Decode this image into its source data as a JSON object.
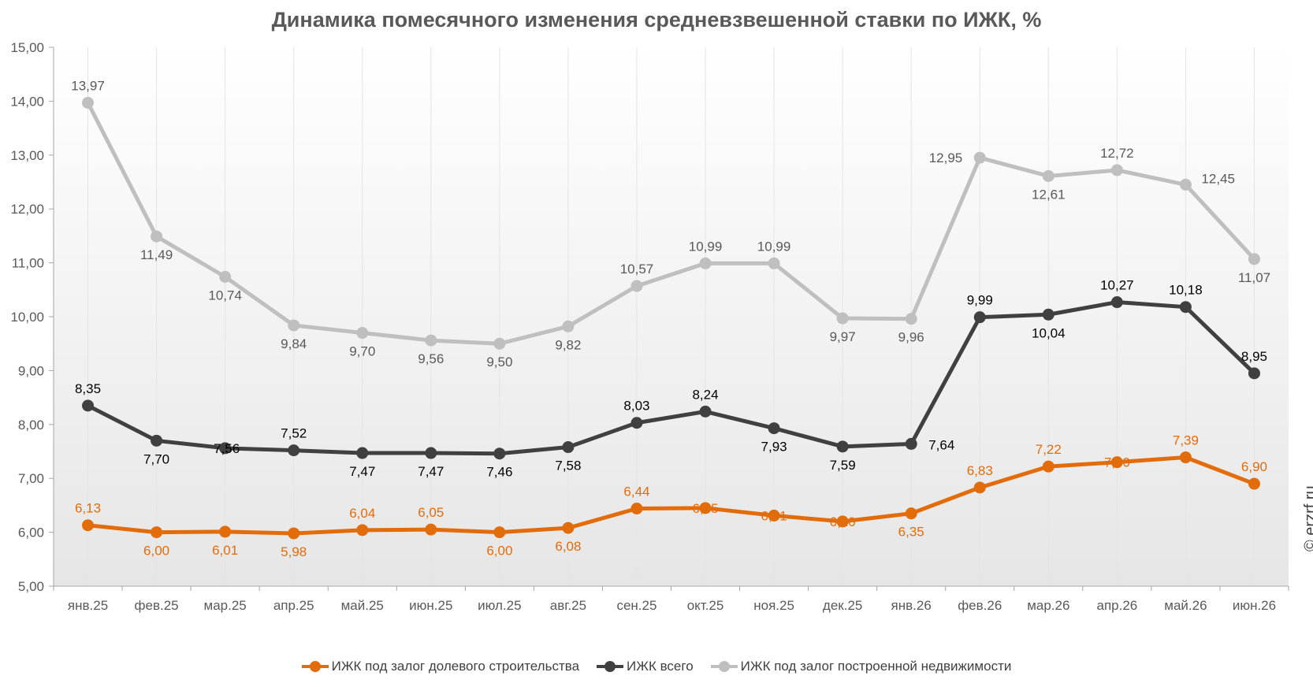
{
  "title": "Динамика помесячного изменения средневзвешенной ставки по ИЖК, %",
  "watermark": "© erzrf.ru",
  "chart_data": {
    "type": "line",
    "title": "Динамика помесячного изменения средневзвешенной ставки по ИЖК, %",
    "categories": [
      "янв.25",
      "фев.25",
      "мар.25",
      "апр.25",
      "май.25",
      "июн.25",
      "июл.25",
      "авг.25",
      "сен.25",
      "окт.25",
      "ноя.25",
      "дек.25",
      "янв.26",
      "фев.26",
      "мар.26",
      "апр.26",
      "май.26",
      "июн.26"
    ],
    "ylim": [
      5,
      15
    ],
    "yticks": [
      "5,00",
      "6,00",
      "7,00",
      "8,00",
      "9,00",
      "10,00",
      "11,00",
      "12,00",
      "13,00",
      "14,00",
      "15,00"
    ],
    "grid": true,
    "legend_position": "bottom",
    "series": [
      {
        "name": "ИЖК под залог долевого строительства",
        "color": "#E36C0A",
        "values": [
          6.13,
          6.0,
          6.01,
          5.98,
          6.04,
          6.05,
          6.0,
          6.08,
          6.44,
          6.45,
          6.31,
          6.2,
          6.35,
          6.83,
          7.22,
          7.3,
          7.39,
          6.9
        ],
        "labels": [
          "6,13",
          "6,00",
          "6,01",
          "5,98",
          "6,04",
          "6,05",
          "6,00",
          "6,08",
          "6,44",
          "6,45",
          "6,31",
          "6,20",
          "6,35",
          "6,83",
          "7,22",
          "7,30",
          "7,39",
          "6,90"
        ]
      },
      {
        "name": "ИЖК всего",
        "color": "#404040",
        "values": [
          8.35,
          7.7,
          7.56,
          7.52,
          7.47,
          7.47,
          7.46,
          7.58,
          8.03,
          8.24,
          7.93,
          7.59,
          7.64,
          9.99,
          10.04,
          10.27,
          10.18,
          8.95
        ],
        "labels": [
          "8,35",
          "7,70",
          "7,56",
          "7,52",
          "7,47",
          "7,47",
          "7,46",
          "7,58",
          "8,03",
          "8,24",
          "7,93",
          "7,59",
          "7,64",
          "9,99",
          "10,04",
          "10,27",
          "10,18",
          "8,95"
        ]
      },
      {
        "name": "ИЖК под залог построенной недвижимости",
        "color": "#BFBFBF",
        "values": [
          13.97,
          11.49,
          10.74,
          9.84,
          9.7,
          9.56,
          9.5,
          9.82,
          10.57,
          10.99,
          10.99,
          9.97,
          9.96,
          12.95,
          12.61,
          12.72,
          12.45,
          11.07
        ],
        "labels": [
          "13,97",
          "11,49",
          "10,74",
          "9,84",
          "9,70",
          "9,56",
          "9,50",
          "9,82",
          "10,57",
          "10,99",
          "10,99",
          "9,97",
          "9,96",
          "12,95",
          "12,61",
          "12,72",
          "12,45",
          "11,07"
        ]
      }
    ]
  }
}
